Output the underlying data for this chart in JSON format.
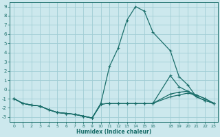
{
  "title": "",
  "xlabel": "Humidex (Indice chaleur)",
  "bg_color": "#cce8ed",
  "grid_color": "#a0cdd4",
  "line_color": "#1a6e6a",
  "xlim": [
    -0.5,
    23.5
  ],
  "ylim": [
    -3.5,
    9.5
  ],
  "xticks": [
    0,
    1,
    2,
    3,
    4,
    5,
    6,
    7,
    8,
    9,
    10,
    11,
    12,
    13,
    14,
    15,
    16,
    18,
    19,
    20,
    21,
    22,
    23
  ],
  "xtick_labels": [
    "0",
    "1",
    "2",
    "3",
    "4",
    "5",
    "6",
    "7",
    "8",
    "9",
    "10",
    "11",
    "12",
    "13",
    "14",
    "15",
    "16",
    "18",
    "19",
    "20",
    "21",
    "22",
    "23"
  ],
  "yticks": [
    -3,
    -2,
    -1,
    0,
    1,
    2,
    3,
    4,
    5,
    6,
    7,
    8,
    9
  ],
  "curve1_x": [
    0,
    1,
    2,
    3,
    4,
    5,
    6,
    7,
    8,
    9,
    10,
    11,
    12,
    13,
    14,
    15,
    16,
    18,
    19,
    20,
    21,
    22,
    23
  ],
  "curve1_y": [
    -1,
    -1.5,
    -1.7,
    -1.8,
    -2.2,
    -2.5,
    -2.6,
    -2.7,
    -2.9,
    -3.1,
    -1.5,
    2.5,
    4.5,
    7.5,
    9.0,
    8.5,
    6.2,
    4.2,
    1.4,
    0.5,
    -0.8,
    -1.2,
    -1.5
  ],
  "curve2_x": [
    0,
    1,
    2,
    3,
    4,
    5,
    6,
    7,
    8,
    9,
    10,
    11,
    12,
    13,
    14,
    15,
    16,
    18,
    19,
    20,
    21,
    22,
    23
  ],
  "curve2_y": [
    -1,
    -1.5,
    -1.7,
    -1.8,
    -2.2,
    -2.5,
    -2.6,
    -2.7,
    -2.9,
    -3.1,
    -1.6,
    -1.5,
    -1.5,
    -1.5,
    -1.5,
    -1.5,
    -1.5,
    1.5,
    0.3,
    -0.2,
    -0.8,
    -1.2,
    -1.5
  ],
  "curve3_x": [
    0,
    1,
    2,
    3,
    4,
    5,
    6,
    7,
    8,
    9,
    10,
    11,
    12,
    13,
    14,
    15,
    16,
    18,
    19,
    20,
    21,
    22,
    23
  ],
  "curve3_y": [
    -1,
    -1.5,
    -1.7,
    -1.8,
    -2.2,
    -2.5,
    -2.6,
    -2.7,
    -2.9,
    -3.1,
    -1.6,
    -1.5,
    -1.5,
    -1.5,
    -1.5,
    -1.5,
    -1.5,
    -0.5,
    -0.3,
    -0.2,
    -0.6,
    -1.0,
    -1.5
  ],
  "curve4_x": [
    0,
    1,
    2,
    3,
    4,
    5,
    6,
    7,
    8,
    9,
    10,
    11,
    12,
    13,
    14,
    15,
    16,
    18,
    19,
    20,
    21,
    22,
    23
  ],
  "curve4_y": [
    -1,
    -1.5,
    -1.7,
    -1.8,
    -2.2,
    -2.5,
    -2.6,
    -2.7,
    -2.9,
    -3.1,
    -1.6,
    -1.5,
    -1.5,
    -1.5,
    -1.5,
    -1.5,
    -1.5,
    -0.8,
    -0.6,
    -0.4,
    -0.6,
    -1.0,
    -1.5
  ]
}
